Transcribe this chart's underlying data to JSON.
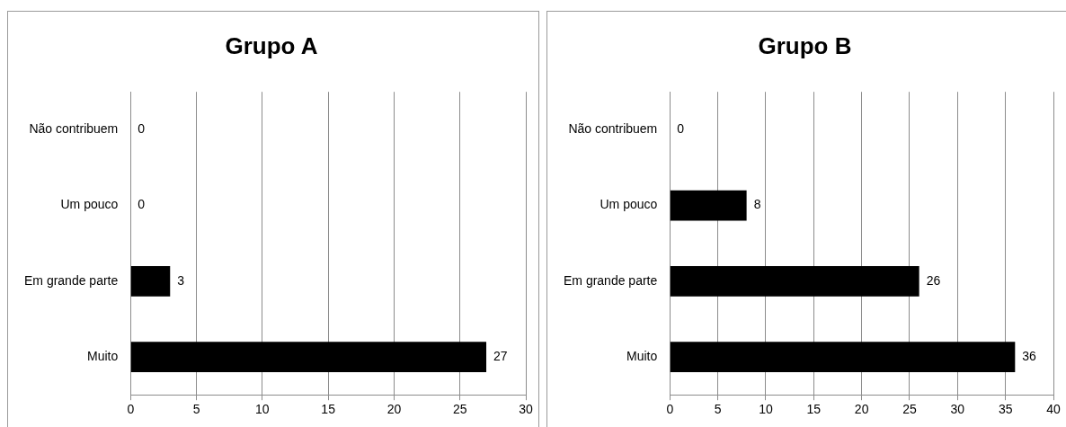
{
  "chart_data": [
    {
      "type": "bar",
      "title": "Grupo A",
      "orientation": "horizontal",
      "categories": [
        "Não contribuem",
        "Um pouco",
        "Em grande parte",
        "Muito"
      ],
      "values": [
        0,
        0,
        3,
        27
      ],
      "color": "#000000",
      "xlim": [
        0,
        30
      ],
      "xticks": [
        0,
        5,
        10,
        15,
        20,
        25,
        30
      ],
      "grid": "x",
      "data_labels": true,
      "legend": false
    },
    {
      "type": "bar",
      "title": "Grupo B",
      "orientation": "horizontal",
      "categories": [
        "Não contribuem",
        "Um pouco",
        "Em grande parte",
        "Muito"
      ],
      "values": [
        0,
        8,
        26,
        36
      ],
      "color": "#000000",
      "xlim": [
        0,
        40
      ],
      "xticks": [
        0,
        5,
        10,
        15,
        20,
        25,
        30,
        35,
        40
      ],
      "grid": "x",
      "data_labels": true,
      "legend": false
    }
  ]
}
